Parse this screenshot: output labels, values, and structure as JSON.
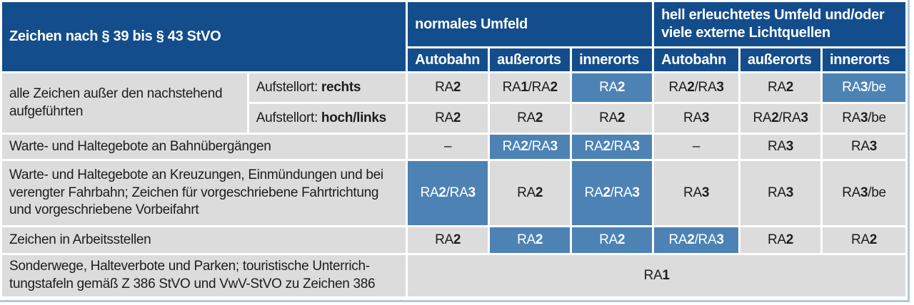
{
  "table": {
    "title": "Zeichen nach § 39 bis § 43 StVO",
    "groups": [
      {
        "label": "normales Umfeld",
        "columns": [
          "Autobahn",
          "außerorts",
          "innerorts"
        ]
      },
      {
        "label": "hell erleuchtetes Umfeld und/oder\nviele externe Lichtquellen",
        "columns": [
          "Autobahn",
          "außerorts",
          "innerorts"
        ]
      }
    ],
    "rows": [
      {
        "label": "alle Zeichen außer den nachstehend\naufgeführten",
        "subrows": [
          {
            "sublabel_prefix": "Aufstellort: ",
            "sublabel_bold": "rechts",
            "cells": [
              {
                "value": "RA2"
              },
              {
                "value": "RA1/RA2"
              },
              {
                "value": "RA2",
                "highlight": true
              },
              {
                "value": "RA2/RA3"
              },
              {
                "value": "RA2"
              },
              {
                "value": "RA3/be",
                "highlight": true
              }
            ]
          },
          {
            "sublabel_prefix": "Aufstellort: ",
            "sublabel_bold": "hoch/links",
            "cells": [
              {
                "value": "RA2"
              },
              {
                "value": "RA2"
              },
              {
                "value": "RA2"
              },
              {
                "value": "RA3"
              },
              {
                "value": "RA2/RA3"
              },
              {
                "value": "RA3/be"
              }
            ]
          }
        ]
      },
      {
        "label": "Warte- und Haltegebote an Bahnübergängen",
        "cells": [
          {
            "value": "–"
          },
          {
            "value": "RA2/RA3",
            "highlight": true
          },
          {
            "value": "RA2/RA3",
            "highlight": true
          },
          {
            "value": "–"
          },
          {
            "value": "RA3"
          },
          {
            "value": "RA3"
          }
        ]
      },
      {
        "label": "Warte- und Haltegebote an Kreuzungen, Einmündungen und bei\nverengter Fahrbahn; Zeichen für vorgeschriebene Fahrtrichtung\nund vorgeschriebene Vorbeifahrt",
        "cells": [
          {
            "value": "RA2/RA3",
            "highlight": true
          },
          {
            "value": "RA2"
          },
          {
            "value": "RA2/RA3",
            "highlight": true
          },
          {
            "value": "RA3"
          },
          {
            "value": "RA3"
          },
          {
            "value": "RA3/be"
          }
        ]
      },
      {
        "label": "Zeichen in Arbeitsstellen",
        "cells": [
          {
            "value": "RA2"
          },
          {
            "value": "RA2",
            "highlight": true
          },
          {
            "value": "RA2",
            "highlight": true
          },
          {
            "value": "RA2/RA3",
            "highlight": true
          },
          {
            "value": "RA2"
          },
          {
            "value": "RA2"
          }
        ]
      },
      {
        "label": "Sonderwege, Halteverbote und Parken; touristische Unterrich-\ntungstafeln gemäß Z 386 StVO und VwV-StVO zu Zeichen 386",
        "span_value": "RA1"
      }
    ],
    "colors": {
      "header_blue": "#144d8c",
      "highlight_blue": "#4d82b5",
      "cell_gray": "#dcdcdc",
      "edge_light_blue": "#b4c8dc"
    }
  }
}
